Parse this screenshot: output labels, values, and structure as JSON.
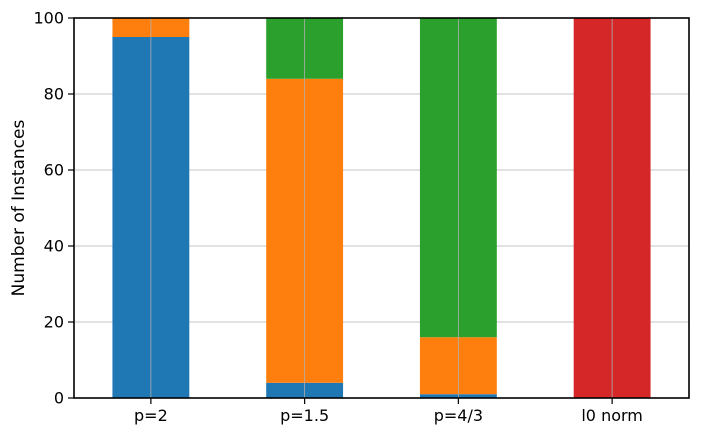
{
  "chart_data": {
    "type": "bar",
    "stacked": true,
    "categories": [
      "p=2",
      "p=1.5",
      "p=4/3",
      "l0 norm"
    ],
    "series": [
      {
        "color": "#1f77b4",
        "values": [
          95,
          4,
          1,
          0
        ]
      },
      {
        "color": "#ff7f0e",
        "values": [
          5,
          80,
          15,
          0
        ]
      },
      {
        "color": "#2ca02c",
        "values": [
          0,
          16,
          84,
          0
        ]
      },
      {
        "color": "#d62728",
        "values": [
          0,
          0,
          0,
          100
        ]
      }
    ],
    "title": "",
    "xlabel": "",
    "ylabel": "Number of Instances",
    "ylim": [
      0,
      100
    ],
    "yticks": [
      "0",
      "20",
      "40",
      "60",
      "80",
      "100"
    ],
    "grid": true,
    "legend": "none"
  }
}
